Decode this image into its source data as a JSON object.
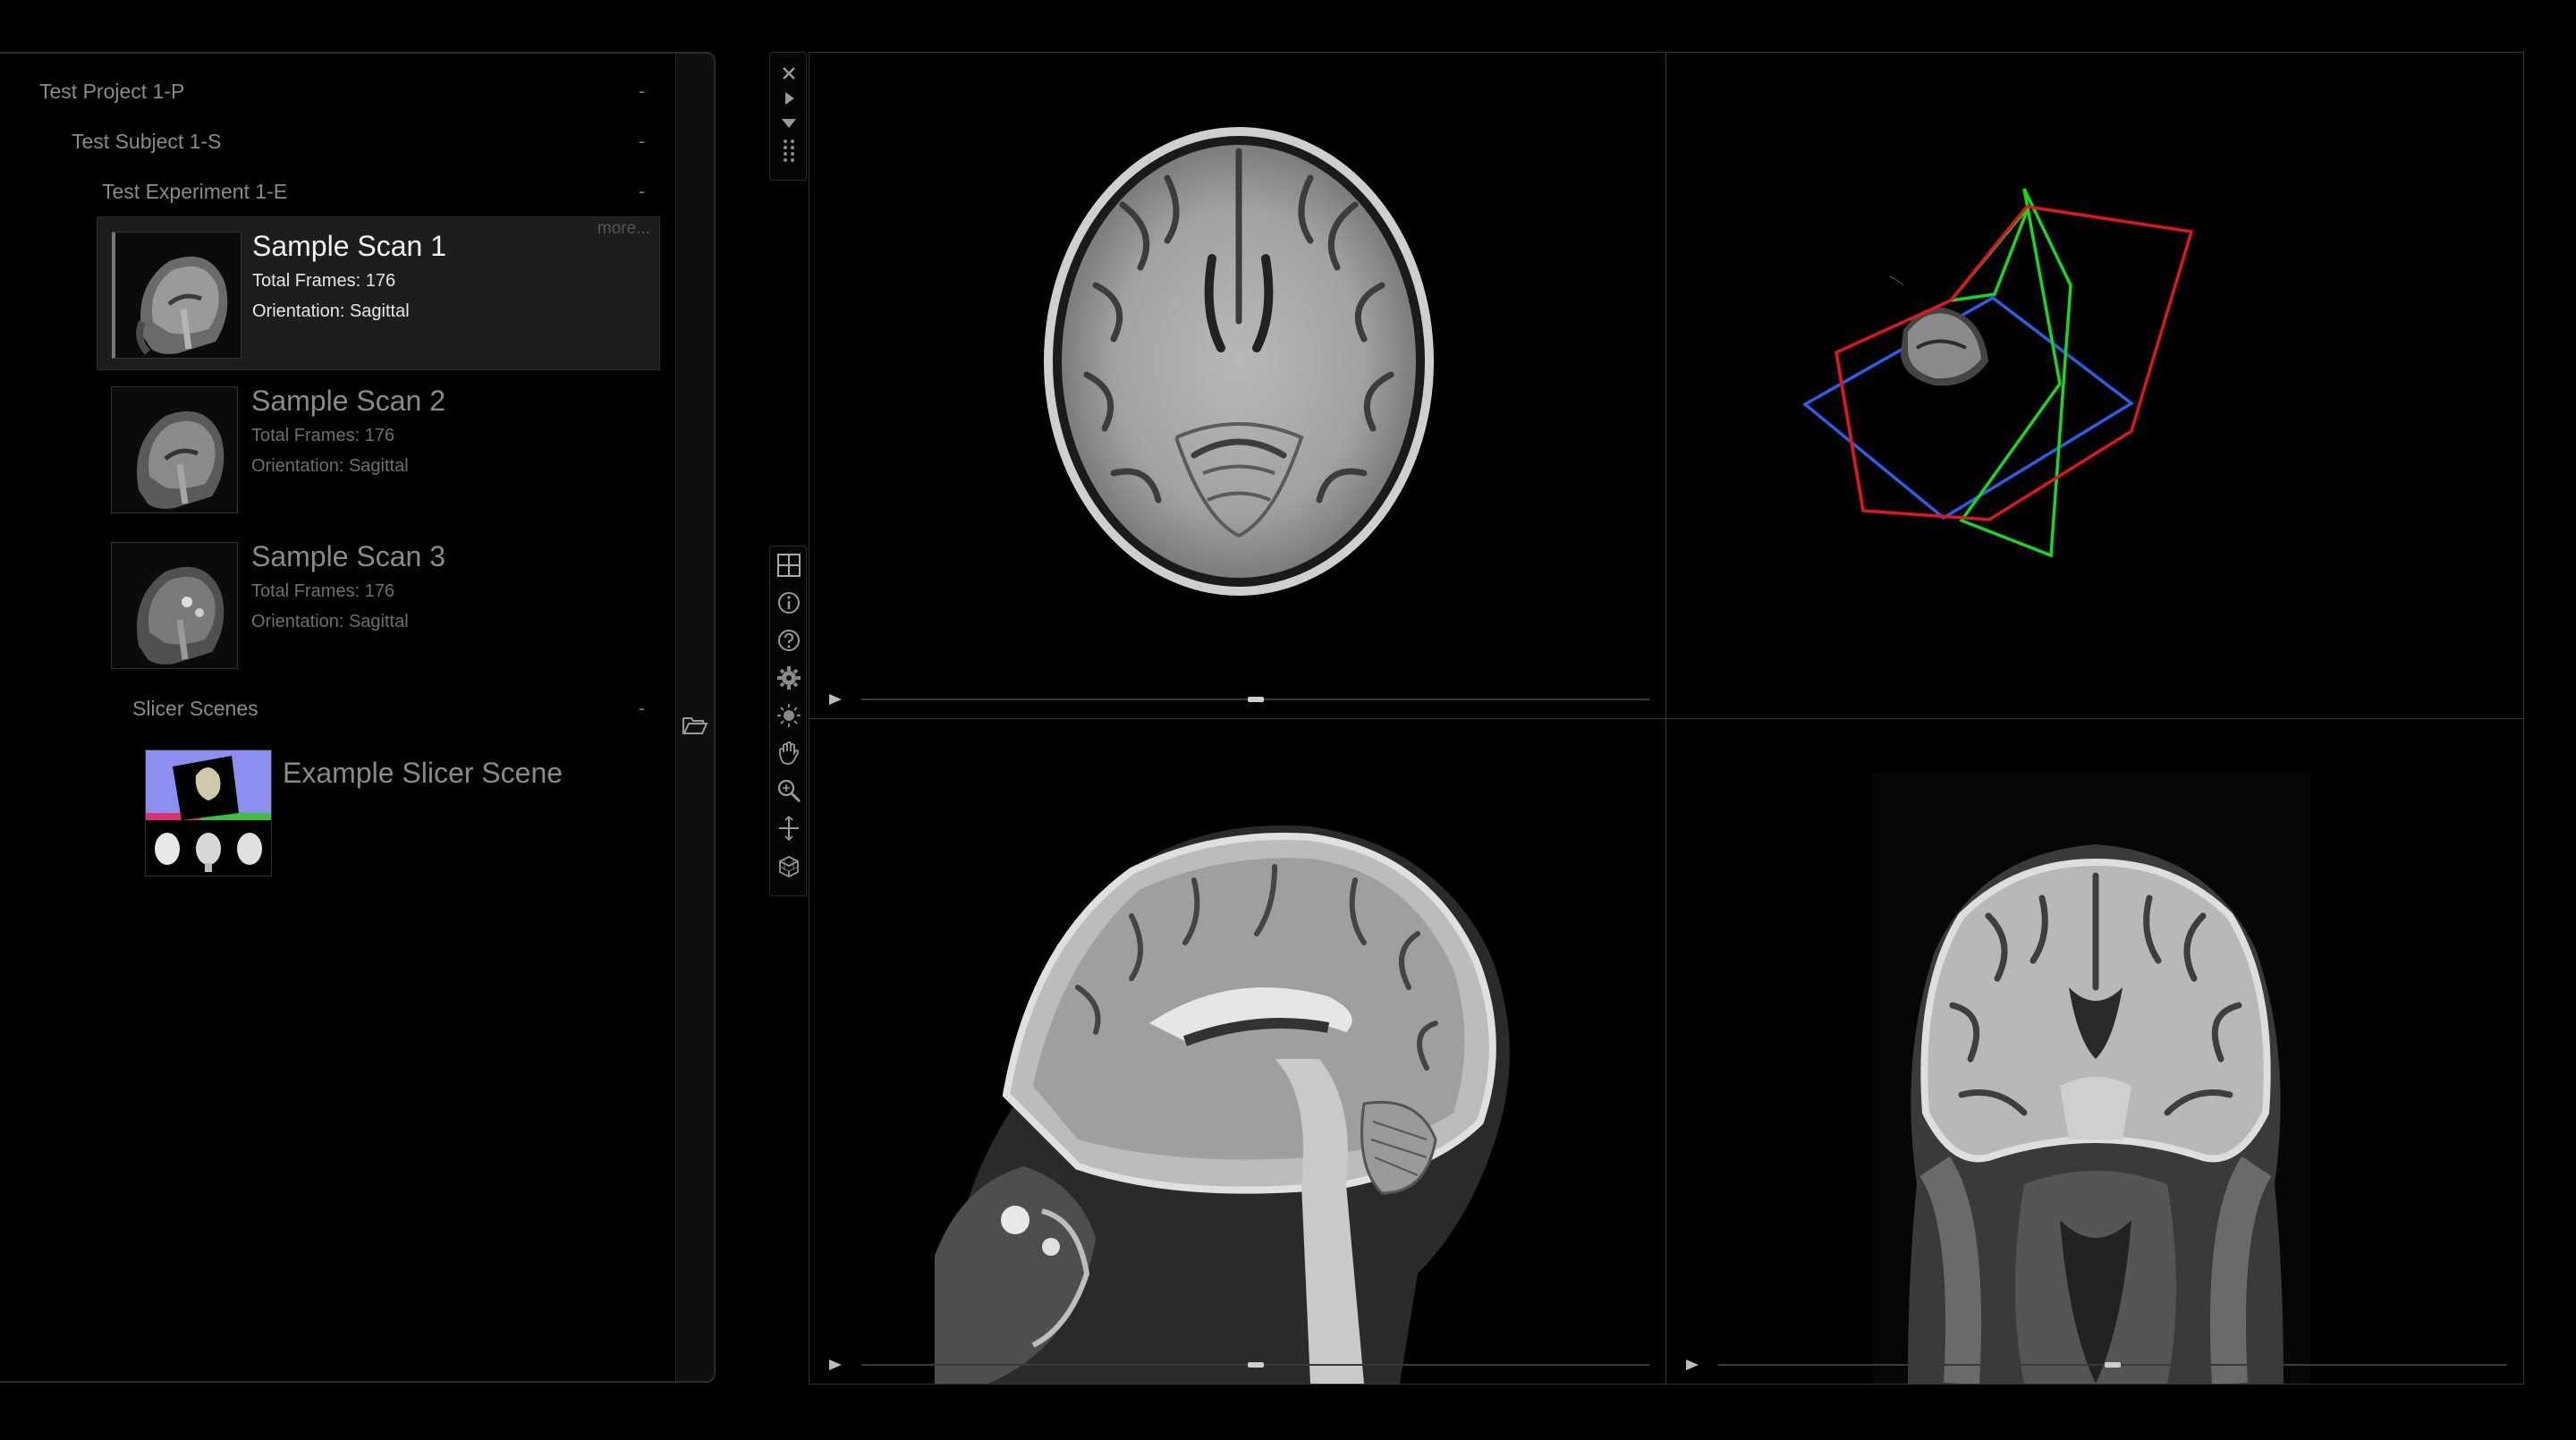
{
  "browser": {
    "project": {
      "label": "Test Project 1-P",
      "toggle": "-"
    },
    "subject": {
      "label": "Test Subject 1-S",
      "toggle": "-"
    },
    "experiment": {
      "label": "Test Experiment 1-E",
      "toggle": "-"
    },
    "scans": [
      {
        "title": "Sample Scan 1",
        "frames": "Total Frames: 176",
        "orientation": "Orientation: Sagittal",
        "more": "more...",
        "selected": true
      },
      {
        "title": "Sample Scan 2",
        "frames": "Total Frames: 176",
        "orientation": "Orientation: Sagittal",
        "selected": false
      },
      {
        "title": "Sample Scan 3",
        "frames": "Total Frames: 176",
        "orientation": "Orientation: Sagittal",
        "selected": false
      }
    ],
    "slicer": {
      "label": "Slicer Scenes",
      "toggle": "-",
      "scene_title": "Example Slicer Scene"
    }
  },
  "toolbar": {
    "top": [
      "close-icon",
      "play-right-icon",
      "dropdown-icon",
      "grip-icon"
    ],
    "tools": [
      "layout-grid-icon",
      "info-icon",
      "help-icon",
      "settings-gear-icon",
      "brightness-icon",
      "pan-hand-icon",
      "zoom-icon",
      "crosshair-icon",
      "cube-3d-icon"
    ]
  },
  "viewports": {
    "axial": {
      "slider_fraction": 0.5
    },
    "sagittal": {
      "slider_fraction": 0.5
    },
    "coronal": {
      "slider_fraction": 0.5
    }
  },
  "colors": {
    "plane_red": "#e0161b",
    "plane_green": "#16d81f",
    "plane_blue": "#2a5ee8"
  }
}
